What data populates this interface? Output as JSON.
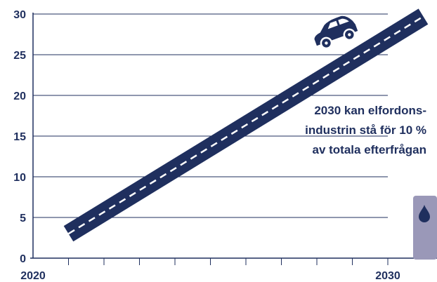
{
  "colors": {
    "navy": "#1f2f5e",
    "axis": "#1f2f5e",
    "grid": "#1f2f5e",
    "dash": "#ffffff",
    "oil_barrel": "#9a98b8",
    "oil_drop": "#1f2f5e",
    "background": "#ffffff"
  },
  "icons": [
    "car-icon",
    "oil-barrel-icon",
    "oil-drop-icon"
  ],
  "annotation": {
    "lines": [
      "2030 kan elfordons-",
      "industrin stå för 10 %",
      "av totala efterfrågan"
    ]
  },
  "chart_data": {
    "type": "line",
    "style": "road",
    "x": [
      2021,
      2031
    ],
    "series": [
      {
        "values": [
          3,
          29.7
        ]
      }
    ],
    "xlim": [
      2020,
      2031.5
    ],
    "ylim": [
      0,
      30
    ],
    "yticks": [
      0,
      5,
      10,
      15,
      20,
      25,
      30
    ],
    "xtick_labels": [
      {
        "value": 2020,
        "label": "2020"
      },
      {
        "value": 2030,
        "label": "2030"
      }
    ],
    "minor_xticks": [
      2021,
      2022,
      2023,
      2024,
      2025,
      2026,
      2027,
      2028,
      2029,
      2030
    ],
    "grid": true,
    "title": "",
    "xlabel": "",
    "ylabel": ""
  }
}
